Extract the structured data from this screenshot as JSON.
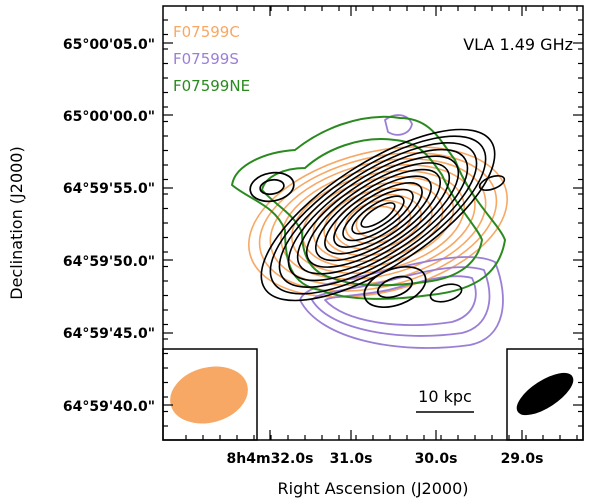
{
  "chart_data": {
    "type": "contour",
    "title": "VLA 1.49 GHz",
    "xlabel": "Right Ascension (J2000)",
    "ylabel": "Declination (J2000)",
    "x_ticks": [
      "8h4m32.0s",
      "31.0s",
      "30.0s",
      "29.0s"
    ],
    "y_ticks": [
      "65°00'05.0\"",
      "65°00'00.0\"",
      "64°59'55.0\"",
      "64°59'50.0\"",
      "64°59'45.0\"",
      "64°59'40.0\""
    ],
    "series": [
      {
        "name": "F07599C",
        "color": "#f7a864"
      },
      {
        "name": "F07599S",
        "color": "#9b7fd6"
      },
      {
        "name": "F07599NE",
        "color": "#2a8a1f"
      },
      {
        "name": "",
        "color": "#000000"
      }
    ],
    "scale_bar_label": "10 kpc",
    "beams": [
      "orange-beam",
      "black-beam"
    ]
  }
}
